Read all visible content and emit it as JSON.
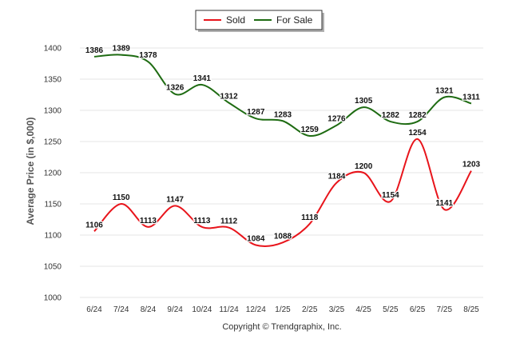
{
  "chart_data": {
    "type": "line",
    "ylabel": "Average Price (in $,000)",
    "ylim": [
      1000,
      1400
    ],
    "yticks": [
      1000,
      1050,
      1100,
      1150,
      1200,
      1250,
      1300,
      1350,
      1400
    ],
    "grid": true,
    "legend_position": "top-center",
    "categories": [
      "6/24",
      "7/24",
      "8/24",
      "9/24",
      "10/24",
      "11/24",
      "12/24",
      "1/25",
      "2/25",
      "3/25",
      "4/25",
      "5/25",
      "6/25",
      "7/25",
      "8/25"
    ],
    "series": [
      {
        "name": "Sold",
        "color": "#e8141b",
        "values": [
          1106,
          1150,
          1113,
          1147,
          1113,
          1112,
          1084,
          1088,
          1118,
          1184,
          1200,
          1154,
          1254,
          1141,
          1203
        ]
      },
      {
        "name": "For Sale",
        "color": "#1e6b12",
        "values": [
          1386,
          1389,
          1378,
          1326,
          1341,
          1312,
          1287,
          1283,
          1259,
          1276,
          1305,
          1282,
          1282,
          1321,
          1311
        ]
      }
    ]
  },
  "footer": {
    "copyright": "Copyright © Trendgraphix, Inc."
  }
}
